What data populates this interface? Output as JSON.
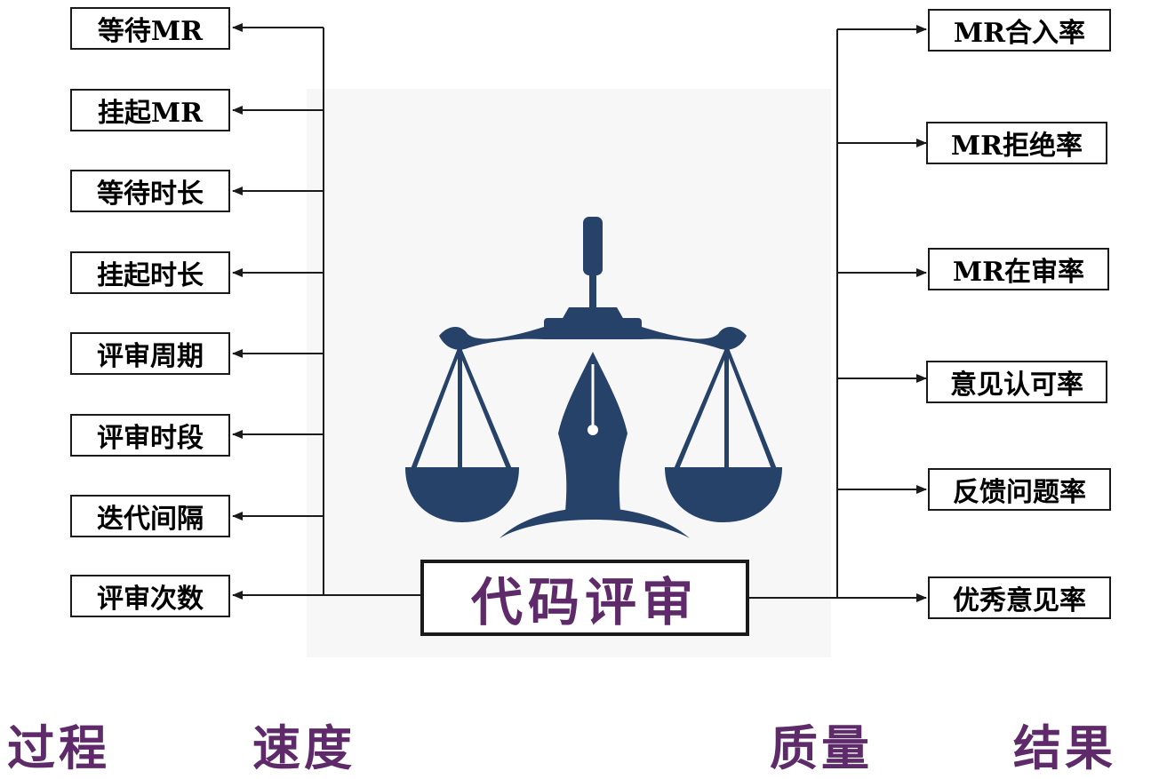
{
  "center_label": "代码评审",
  "left_items": [
    "等待MR",
    "挂起MR",
    "等待时长",
    "挂起时长",
    "评审周期",
    "评审时段",
    "迭代间隔",
    "评审次数"
  ],
  "right_items": [
    "MR合入率",
    "MR拒绝率",
    "MR在审率",
    "意见认可率",
    "反馈问题率",
    "优秀意见率"
  ],
  "footer": {
    "process": "过程",
    "speed": "速度",
    "quality": "质量",
    "result": "结果"
  },
  "colors": {
    "logo": "#264269",
    "accent_purple": "#5e2a6a",
    "line": "#1a1a1a"
  }
}
